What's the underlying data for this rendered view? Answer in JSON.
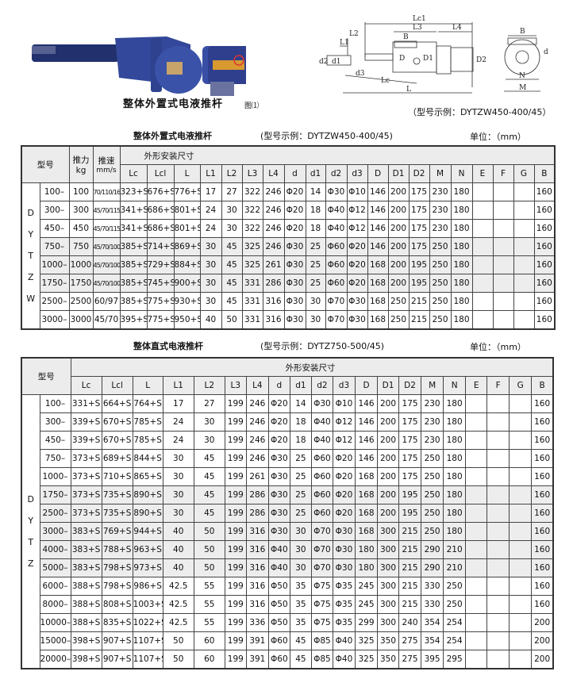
{
  "figure": {
    "caption": "整体外置式电液推杆",
    "figure_label": "图⑴",
    "diagram_example": "（型号示例：DYTZW450-400/45）",
    "diagram_labels": {
      "lc1": "Lc1",
      "l3": "L3",
      "l4": "L4",
      "l2": "L2",
      "l1": "L1",
      "b": "B",
      "d2": "d2",
      "d1": "d1",
      "d3": "d3",
      "lc": "Lc",
      "l": "L",
      "D": "D",
      "D1": "D1",
      "D2": "D2",
      "b_side": "B",
      "d_side": "d",
      "n": "N",
      "m": "M"
    }
  },
  "table1": {
    "title": "整体外置式电液推杆",
    "example": "(型号示例：DYTZW450-400/45)",
    "unit": "单位：（mm）",
    "model_header": "型号",
    "thrust_header": "推力",
    "thrust_unit": "kg",
    "speed_header": "推速",
    "speed_unit": "mm/s",
    "group_header": "外形安装尺寸",
    "series_letters": [
      "D",
      "Y",
      "T",
      "Z",
      "W"
    ],
    "columns": [
      "Lc",
      "Lcl",
      "L",
      "L1",
      "L2",
      "L3",
      "L4",
      "d",
      "d1",
      "d2",
      "d3",
      "D",
      "D1",
      "D2",
      "M",
      "N",
      "E",
      "F",
      "G",
      "B"
    ],
    "rows": [
      [
        "100–",
        "100",
        "70/110/165",
        "323+S",
        "676+S",
        "776+S",
        "17",
        "27",
        "322",
        "246",
        "Φ20",
        "14",
        "Φ30",
        "Φ10",
        "146",
        "200",
        "175",
        "230",
        "180",
        "",
        "",
        "",
        "160"
      ],
      [
        "300–",
        "300",
        "45/70/115",
        "341+S",
        "686+S",
        "801+S",
        "24",
        "30",
        "322",
        "246",
        "Φ20",
        "18",
        "Φ40",
        "Φ12",
        "146",
        "200",
        "175",
        "230",
        "180",
        "",
        "",
        "",
        "160"
      ],
      [
        "450–",
        "450",
        "45/70/115",
        "341+S",
        "686+S",
        "801+S",
        "24",
        "30",
        "322",
        "246",
        "Φ20",
        "18",
        "Φ40",
        "Φ12",
        "146",
        "200",
        "175",
        "230",
        "180",
        "",
        "",
        "",
        "160"
      ],
      [
        "750–",
        "750",
        "45/70/100",
        "385+S",
        "714+S",
        "869+S",
        "30",
        "45",
        "325",
        "246",
        "Φ30",
        "25",
        "Φ60",
        "Φ20",
        "146",
        "200",
        "175",
        "250",
        "180",
        "",
        "",
        "",
        "160"
      ],
      [
        "1000–",
        "1000",
        "45/70/100",
        "385+S",
        "729+S",
        "884+S",
        "30",
        "45",
        "325",
        "261",
        "Φ30",
        "25",
        "Φ60",
        "Φ20",
        "168",
        "200",
        "195",
        "250",
        "180",
        "",
        "",
        "",
        "160"
      ],
      [
        "1750–",
        "1750",
        "45/70/100",
        "385+S",
        "745+S",
        "900+S",
        "30",
        "45",
        "331",
        "286",
        "Φ30",
        "25",
        "Φ60",
        "Φ20",
        "168",
        "200",
        "195",
        "250",
        "180",
        "",
        "",
        "",
        "160"
      ],
      [
        "2500–",
        "2500",
        "60/97",
        "385+S",
        "775+S",
        "930+S",
        "30",
        "45",
        "331",
        "316",
        "Φ30",
        "30",
        "Φ70",
        "Φ30",
        "168",
        "250",
        "215",
        "250",
        "180",
        "",
        "",
        "",
        "160"
      ],
      [
        "3000–",
        "3000",
        "45/70",
        "395+S",
        "775+S",
        "950+S",
        "40",
        "50",
        "331",
        "316",
        "Φ30",
        "30",
        "Φ70",
        "Φ30",
        "168",
        "250",
        "215",
        "250",
        "180",
        "",
        "",
        "",
        "160"
      ]
    ]
  },
  "table2": {
    "title": "整体直式电液推杆",
    "example": "(型号示例：DYTZ750-500/45)",
    "unit": "单位：（mm）",
    "model_header": "型号",
    "group_header": "外形安装尺寸",
    "series_letters": [
      "D",
      "Y",
      "T",
      "Z"
    ],
    "columns": [
      "Lc",
      "Lcl",
      "L",
      "L1",
      "L2",
      "L3",
      "L4",
      "d",
      "d1",
      "d2",
      "d3",
      "D",
      "D1",
      "D2",
      "M",
      "N",
      "E",
      "F",
      "G",
      "B"
    ],
    "rows": [
      [
        "100–",
        "331+S",
        "664+S",
        "764+S",
        "17",
        "27",
        "199",
        "246",
        "Φ20",
        "14",
        "Φ30",
        "Φ10",
        "146",
        "200",
        "175",
        "230",
        "180",
        "",
        "",
        "",
        "160"
      ],
      [
        "300–",
        "339+S",
        "670+S",
        "785+S",
        "24",
        "30",
        "199",
        "246",
        "Φ20",
        "18",
        "Φ40",
        "Φ12",
        "146",
        "200",
        "175",
        "230",
        "180",
        "",
        "",
        "",
        "160"
      ],
      [
        "450–",
        "339+S",
        "670+S",
        "785+S",
        "24",
        "30",
        "199",
        "246",
        "Φ20",
        "18",
        "Φ40",
        "Φ12",
        "146",
        "200",
        "175",
        "230",
        "180",
        "",
        "",
        "",
        "160"
      ],
      [
        "750–",
        "373+S",
        "689+S",
        "844+S",
        "30",
        "45",
        "199",
        "246",
        "Φ30",
        "25",
        "Φ60",
        "Φ20",
        "146",
        "200",
        "175",
        "250",
        "180",
        "",
        "",
        "",
        "160"
      ],
      [
        "1000–",
        "373+S",
        "710+S",
        "865+S",
        "30",
        "45",
        "199",
        "261",
        "Φ30",
        "25",
        "Φ60",
        "Φ20",
        "168",
        "200",
        "175",
        "250",
        "180",
        "",
        "",
        "",
        "160"
      ],
      [
        "1750–",
        "373+S",
        "735+S",
        "890+S",
        "30",
        "45",
        "199",
        "286",
        "Φ30",
        "25",
        "Φ60",
        "Φ20",
        "168",
        "200",
        "195",
        "250",
        "180",
        "",
        "",
        "",
        "160"
      ],
      [
        "2500–",
        "373+S",
        "735+S",
        "890+S",
        "30",
        "45",
        "199",
        "286",
        "Φ30",
        "25",
        "Φ60",
        "Φ20",
        "168",
        "200",
        "195",
        "250",
        "180",
        "",
        "",
        "",
        "160"
      ],
      [
        "3000–",
        "383+S",
        "769+S",
        "944+S",
        "40",
        "50",
        "199",
        "316",
        "Φ30",
        "30",
        "Φ70",
        "Φ30",
        "168",
        "300",
        "215",
        "250",
        "180",
        "",
        "",
        "",
        "160"
      ],
      [
        "4000–",
        "383+S",
        "788+S",
        "963+S",
        "40",
        "50",
        "199",
        "316",
        "Φ40",
        "30",
        "Φ70",
        "Φ30",
        "180",
        "300",
        "215",
        "290",
        "210",
        "",
        "",
        "",
        "160"
      ],
      [
        "5000–",
        "383+S",
        "798+S",
        "973+S",
        "40",
        "50",
        "199",
        "316",
        "Φ40",
        "30",
        "Φ70",
        "Φ30",
        "180",
        "300",
        "215",
        "290",
        "210",
        "",
        "",
        "",
        "160"
      ],
      [
        "6000–",
        "388+S",
        "798+S",
        "986+S",
        "42.5",
        "55",
        "199",
        "316",
        "Φ50",
        "35",
        "Φ75",
        "Φ35",
        "245",
        "300",
        "215",
        "330",
        "250",
        "",
        "",
        "",
        "160"
      ],
      [
        "8000–",
        "388+S",
        "808+S",
        "1003+S",
        "42.5",
        "55",
        "199",
        "316",
        "Φ50",
        "35",
        "Φ75",
        "Φ35",
        "245",
        "300",
        "215",
        "330",
        "250",
        "",
        "",
        "",
        "160"
      ],
      [
        "10000–",
        "388+S",
        "835+S",
        "1022+S",
        "42.5",
        "55",
        "199",
        "336",
        "Φ50",
        "35",
        "Φ75",
        "Φ35",
        "299",
        "300",
        "240",
        "354",
        "254",
        "",
        "",
        "",
        "200"
      ],
      [
        "15000–",
        "398+S",
        "907+S",
        "1107+S",
        "50",
        "60",
        "199",
        "391",
        "Φ60",
        "45",
        "Φ85",
        "Φ40",
        "325",
        "350",
        "275",
        "354",
        "254",
        "",
        "",
        "",
        "200"
      ],
      [
        "20000–",
        "398+S",
        "907+S",
        "1107+S",
        "50",
        "60",
        "199",
        "391",
        "Φ60",
        "45",
        "Φ85",
        "Φ40",
        "325",
        "350",
        "275",
        "395",
        "295",
        "",
        "",
        "",
        "200"
      ]
    ]
  }
}
